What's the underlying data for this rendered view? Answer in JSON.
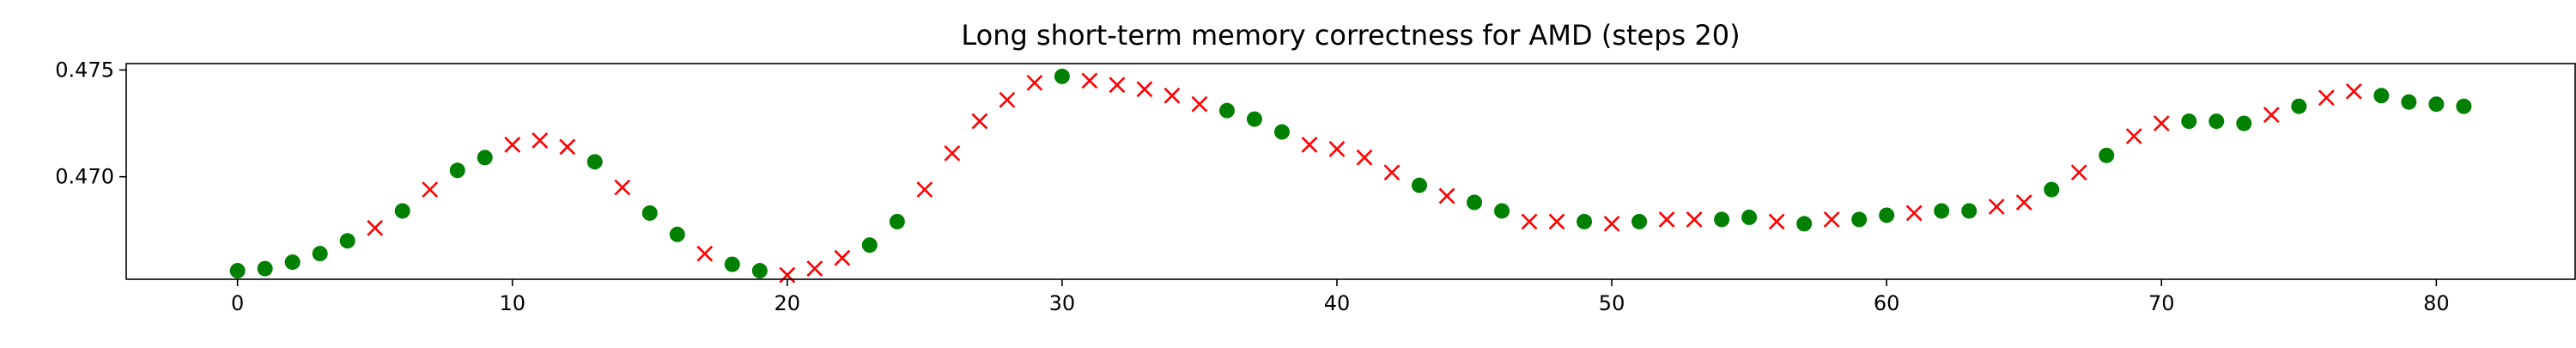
{
  "chart_data": {
    "type": "scatter",
    "title": "Long short-term memory correctness for AMD (steps 20)",
    "xlabel": "",
    "ylabel": "",
    "xlim": [
      -4.05,
      85.05
    ],
    "ylim": [
      0.4652,
      0.4753
    ],
    "x_ticks": [
      0,
      10,
      20,
      30,
      40,
      50,
      60,
      70,
      80
    ],
    "y_ticks": [
      0.47,
      0.475
    ],
    "x_tick_labels": [
      "0",
      "10",
      "20",
      "30",
      "40",
      "50",
      "60",
      "70",
      "80"
    ],
    "y_tick_labels": [
      "0.470",
      "0.475"
    ],
    "grid": false,
    "legend": "none",
    "colors": {
      "correct": "#008000",
      "incorrect": "#ff0000"
    },
    "markers": {
      "correct": "circle",
      "incorrect": "x"
    },
    "x": [
      0,
      1,
      2,
      3,
      4,
      5,
      6,
      7,
      8,
      9,
      10,
      11,
      12,
      13,
      14,
      15,
      16,
      17,
      18,
      19,
      20,
      21,
      22,
      23,
      24,
      25,
      26,
      27,
      28,
      29,
      30,
      31,
      32,
      33,
      34,
      35,
      36,
      37,
      38,
      39,
      40,
      41,
      42,
      43,
      44,
      45,
      46,
      47,
      48,
      49,
      50,
      51,
      52,
      53,
      54,
      55,
      56,
      57,
      58,
      59,
      60,
      61,
      62,
      63,
      64,
      65,
      66,
      67,
      68,
      69,
      70,
      71,
      72,
      73,
      74,
      75,
      76,
      77,
      78,
      79,
      80,
      81
    ],
    "y": [
      0.4656,
      0.4657,
      0.466,
      0.4664,
      0.467,
      0.4676,
      0.4684,
      0.4694,
      0.4703,
      0.4709,
      0.4715,
      0.4717,
      0.4714,
      0.4707,
      0.4695,
      0.4683,
      0.4673,
      0.4664,
      0.4659,
      0.4656,
      0.4654,
      0.4657,
      0.4662,
      0.4668,
      0.4679,
      0.4694,
      0.4711,
      0.4726,
      0.4736,
      0.4744,
      0.4747,
      0.4745,
      0.4743,
      0.4741,
      0.4738,
      0.4734,
      0.4731,
      0.4727,
      0.4721,
      0.4715,
      0.4713,
      0.4709,
      0.4702,
      0.4696,
      0.4691,
      0.4688,
      0.4684,
      0.4679,
      0.4679,
      0.4679,
      0.4678,
      0.4679,
      0.468,
      0.468,
      0.468,
      0.4681,
      0.4679,
      0.4678,
      0.468,
      0.468,
      0.4682,
      0.4683,
      0.4684,
      0.4684,
      0.4686,
      0.4688,
      0.4694,
      0.4702,
      0.471,
      0.4719,
      0.4725,
      0.4726,
      0.4726,
      0.4725,
      0.4729,
      0.4733,
      0.4737,
      0.474,
      0.4738,
      0.4735,
      0.4734,
      0.4733
    ],
    "correct": [
      1,
      1,
      1,
      1,
      1,
      0,
      1,
      0,
      1,
      1,
      0,
      0,
      0,
      1,
      0,
      1,
      1,
      0,
      1,
      1,
      0,
      0,
      0,
      1,
      1,
      0,
      0,
      0,
      0,
      0,
      1,
      0,
      0,
      0,
      0,
      0,
      1,
      1,
      1,
      0,
      0,
      0,
      0,
      1,
      0,
      1,
      1,
      0,
      0,
      1,
      0,
      1,
      0,
      0,
      1,
      1,
      0,
      1,
      0,
      1,
      1,
      0,
      1,
      1,
      0,
      0,
      1,
      0,
      1,
      0,
      0,
      1,
      1,
      1,
      0,
      1,
      0,
      0,
      1,
      1,
      1,
      1
    ]
  }
}
